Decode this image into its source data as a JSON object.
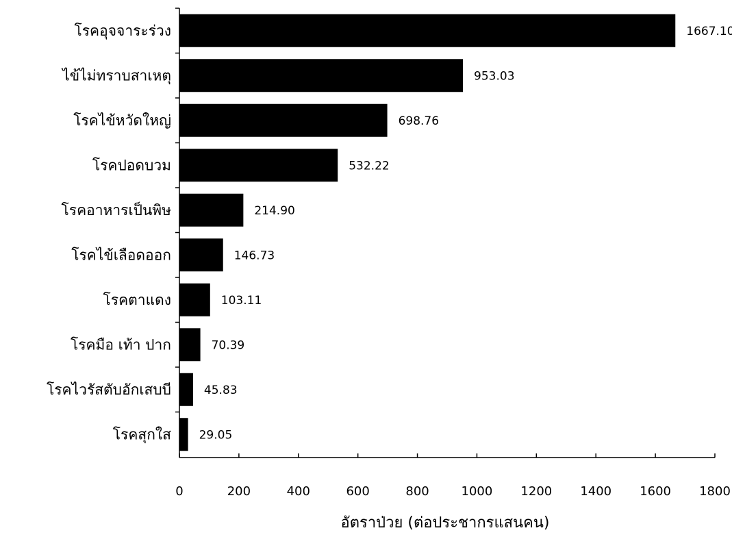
{
  "chart_data": {
    "type": "bar",
    "orientation": "horizontal",
    "title": "",
    "xlabel": "อัตราป่วย (ต่อประชากรแสนคน)",
    "ylabel": "",
    "xlim": [
      0,
      1800
    ],
    "xticks": [
      0,
      200,
      400,
      600,
      800,
      1000,
      1200,
      1400,
      1600,
      1800
    ],
    "grid": false,
    "bar_color": "#000000",
    "categories": [
      "โรคอุจจาระร่วง",
      "ไข้ไม่ทราบสาเหตุ",
      "โรคไข้หวัดใหญ่",
      "โรคปอดบวม",
      "โรคอาหารเป็นพิษ",
      "โรคไข้เลือดออก",
      "โรคตาแดง",
      "โรคมือ เท้า ปาก",
      "โรคไวรัสตับอักเสบบี",
      "โรคสุกใส"
    ],
    "values": [
      1667.1,
      953.03,
      698.76,
      532.22,
      214.9,
      146.73,
      103.11,
      70.39,
      45.83,
      29.05
    ],
    "value_labels": [
      "1667.10",
      "953.03",
      "698.76",
      "532.22",
      "214.90",
      "146.73",
      "103.11",
      "70.39",
      "45.83",
      "29.05"
    ]
  }
}
